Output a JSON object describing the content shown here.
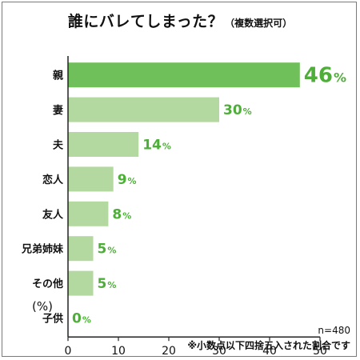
{
  "title": "誰にバレてしまった？",
  "subtitle": "（複数選択可）",
  "axis_unit": "(%)",
  "notes": {
    "sample": "n=480",
    "rounding": "※小数点以下四捨五入された割合です"
  },
  "colors": {
    "highlight": "#6fbf5a",
    "bar": "#b4d9a0",
    "value_text": "#4fae3a",
    "axis": "#222222"
  },
  "chart_data": {
    "type": "bar",
    "orientation": "horizontal",
    "categories": [
      "親",
      "妻",
      "夫",
      "恋人",
      "友人",
      "兄弟姉妹",
      "その他",
      "子供"
    ],
    "values": [
      46,
      30,
      14,
      9,
      8,
      5,
      5,
      0
    ],
    "value_suffix": "%",
    "xlim": [
      0,
      50
    ],
    "xticks": [
      0,
      10,
      20,
      30,
      40,
      50
    ],
    "grid": false,
    "highlight_index": 0
  }
}
